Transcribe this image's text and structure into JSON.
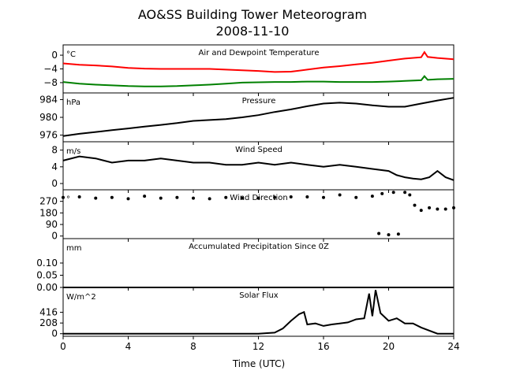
{
  "figure": {
    "title_line1": "AO&SS Building Tower Meteorogram",
    "title_line2": "2008-11-10",
    "xlabel": "Time (UTC)"
  },
  "chart_data": [
    {
      "type": "line",
      "title": "Air and Dewpoint Temperature",
      "unit": "°C",
      "xlim": [
        0,
        24
      ],
      "ylim": [
        -11,
        3
      ],
      "yticks": [
        0,
        -4,
        -8
      ],
      "grid": false,
      "series": [
        {
          "color": "#ff0000",
          "x": [
            0,
            1,
            2,
            3,
            4,
            5,
            6,
            7,
            8,
            9,
            10,
            11,
            12,
            13,
            14,
            15,
            16,
            17,
            18,
            19,
            20,
            21,
            22,
            22.2,
            22.4,
            23,
            24
          ],
          "y": [
            -2.4,
            -2.8,
            -3.0,
            -3.3,
            -3.7,
            -3.9,
            -4.0,
            -4.0,
            -4.0,
            -4.0,
            -4.2,
            -4.4,
            -4.6,
            -4.9,
            -4.8,
            -4.2,
            -3.6,
            -3.2,
            -2.7,
            -2.2,
            -1.6,
            -1.0,
            -0.6,
            0.9,
            -0.5,
            -0.8,
            -1.2
          ]
        },
        {
          "color": "#008000",
          "x": [
            0,
            1,
            2,
            3,
            4,
            5,
            6,
            7,
            8,
            9,
            10,
            11,
            12,
            13,
            14,
            15,
            16,
            17,
            18,
            19,
            20,
            21,
            22,
            22.2,
            22.4,
            23,
            24
          ],
          "y": [
            -7.8,
            -8.3,
            -8.6,
            -8.8,
            -9.0,
            -9.1,
            -9.1,
            -9.0,
            -8.8,
            -8.6,
            -8.3,
            -8.0,
            -7.9,
            -7.8,
            -7.8,
            -7.7,
            -7.7,
            -7.8,
            -7.8,
            -7.8,
            -7.7,
            -7.5,
            -7.3,
            -6.1,
            -7.2,
            -7.0,
            -6.9
          ]
        }
      ]
    },
    {
      "type": "line",
      "title": "Pressure",
      "unit": "hPa",
      "xlim": [
        0,
        24
      ],
      "ylim": [
        974.5,
        985.5
      ],
      "yticks": [
        984,
        980,
        976
      ],
      "grid": false,
      "series": [
        {
          "color": "#000000",
          "x": [
            0,
            1,
            2,
            3,
            4,
            5,
            6,
            7,
            8,
            9,
            10,
            11,
            12,
            13,
            14,
            15,
            16,
            17,
            18,
            19,
            20,
            21,
            22,
            23,
            24
          ],
          "y": [
            975.8,
            976.3,
            976.7,
            977.1,
            977.5,
            977.9,
            978.3,
            978.7,
            979.2,
            979.4,
            979.6,
            980.0,
            980.5,
            981.2,
            981.8,
            982.5,
            983.1,
            983.3,
            983.1,
            982.7,
            982.4,
            982.4,
            983.1,
            983.8,
            984.4
          ]
        }
      ]
    },
    {
      "type": "line",
      "title": "Wind Speed",
      "unit": "m/s",
      "xlim": [
        0,
        24
      ],
      "ylim": [
        -1.5,
        10
      ],
      "yticks": [
        8,
        4,
        0
      ],
      "grid": false,
      "series": [
        {
          "color": "#000000",
          "x": [
            0,
            1,
            2,
            3,
            4,
            5,
            6,
            7,
            8,
            9,
            10,
            11,
            12,
            13,
            14,
            15,
            16,
            17,
            18,
            19,
            20,
            20.5,
            21,
            21.5,
            22,
            22.5,
            23,
            23.5,
            24
          ],
          "y": [
            5.5,
            6.5,
            6.0,
            5.0,
            5.5,
            5.5,
            6.0,
            5.5,
            5.0,
            5.0,
            4.5,
            4.5,
            5.0,
            4.5,
            5.0,
            4.5,
            4.0,
            4.5,
            4.0,
            3.5,
            3.0,
            2.0,
            1.5,
            1.2,
            1.0,
            1.5,
            3.0,
            1.5,
            0.8
          ]
        }
      ]
    },
    {
      "type": "scatter",
      "title": "Wind Direction",
      "unit": "°",
      "xlim": [
        0,
        24
      ],
      "ylim": [
        -20,
        360
      ],
      "yticks": [
        270,
        180,
        90,
        0
      ],
      "grid": false,
      "series": [
        {
          "color": "#000000",
          "x": [
            0,
            1,
            2,
            3,
            4,
            5,
            6,
            7,
            8,
            9,
            10,
            11,
            12,
            13,
            14,
            15,
            16,
            17,
            18,
            19,
            19.4,
            19.6,
            20,
            20.3,
            20.6,
            21,
            21.3,
            21.6,
            22,
            22.5,
            23,
            23.5,
            24
          ],
          "y": [
            300,
            305,
            295,
            300,
            290,
            310,
            295,
            300,
            295,
            290,
            300,
            295,
            295,
            300,
            305,
            305,
            300,
            320,
            300,
            310,
            20,
            330,
            10,
            340,
            15,
            340,
            320,
            240,
            200,
            220,
            210,
            210,
            220
          ]
        }
      ]
    },
    {
      "type": "line",
      "title": "Accumulated Precipitation Since 0Z",
      "unit": "mm",
      "xlim": [
        0,
        24
      ],
      "ylim": [
        0,
        0.2
      ],
      "yticks": [
        0.1,
        0.05,
        0.0
      ],
      "grid": false,
      "series": [
        {
          "color": "#000000",
          "x": [
            0,
            24
          ],
          "y": [
            0,
            0
          ]
        }
      ]
    },
    {
      "type": "line",
      "title": "Solar Flux",
      "unit": "W/m^2",
      "xlim": [
        0,
        24
      ],
      "ylim": [
        -50,
        900
      ],
      "yticks": [
        416,
        208,
        0
      ],
      "grid": false,
      "series": [
        {
          "color": "#000000",
          "x": [
            0,
            12,
            13,
            13.5,
            14,
            14.5,
            14.8,
            15,
            15.5,
            16,
            16.5,
            17,
            17.5,
            18,
            18.5,
            18.8,
            19,
            19.2,
            19.5,
            20,
            20.5,
            21,
            21.5,
            22,
            23,
            24
          ],
          "y": [
            0,
            0,
            20,
            100,
            250,
            380,
            420,
            180,
            200,
            150,
            180,
            200,
            220,
            280,
            300,
            780,
            340,
            850,
            400,
            250,
            300,
            200,
            200,
            120,
            0,
            0
          ]
        }
      ]
    }
  ],
  "xaxis": {
    "ticks": [
      0,
      4,
      8,
      12,
      16,
      20,
      24
    ]
  }
}
